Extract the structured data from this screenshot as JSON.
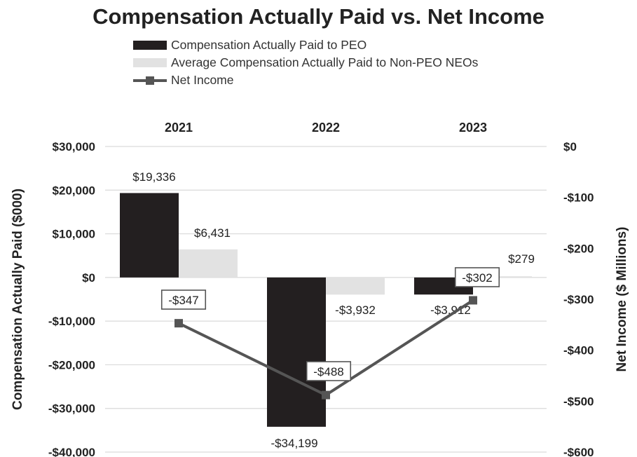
{
  "chart_data": {
    "type": "bar",
    "title": "Compensation Actually Paid vs. Net Income",
    "categories": [
      "2021",
      "2022",
      "2023"
    ],
    "series": [
      {
        "name": "Compensation Actually Paid to PEO",
        "type": "bar",
        "axis": "left",
        "values": [
          19336,
          -34199,
          -3912
        ],
        "labels": [
          "$19,336",
          "-$34,199",
          "-$3,912"
        ],
        "color": "#231f20"
      },
      {
        "name": "Average Compensation Actually Paid to Non-PEO NEOs",
        "type": "bar",
        "axis": "left",
        "values": [
          6431,
          -3932,
          279
        ],
        "labels": [
          "$6,431",
          "-$3,932",
          "$279"
        ],
        "color": "#e2e2e2"
      },
      {
        "name": "Net Income",
        "type": "line",
        "axis": "right",
        "values": [
          -347,
          -488,
          -302
        ],
        "labels": [
          "-$347",
          "-$488",
          "-$302"
        ],
        "color": "#555555"
      }
    ],
    "ylabel": "Compensation Actually Paid ($000)",
    "y2label": "Net Income ($ Millions)",
    "ylim": [
      -40000,
      30000
    ],
    "y2lim": [
      -600,
      0
    ],
    "yticks": [
      30000,
      20000,
      10000,
      0,
      -10000,
      -20000,
      -30000,
      -40000
    ],
    "y2ticks": [
      0,
      -100,
      -200,
      -300,
      -400,
      -500,
      -600
    ],
    "ytick_labels": [
      "$30,000",
      "$20,000",
      "$10,000",
      "$0",
      "-$10,000",
      "-$20,000",
      "-$30,000",
      "-$40,000"
    ],
    "y2tick_labels": [
      "$0",
      "-$100",
      "-$200",
      "-$300",
      "-$400",
      "-$500",
      "-$600"
    ],
    "grid": true,
    "legend_position": "top"
  }
}
